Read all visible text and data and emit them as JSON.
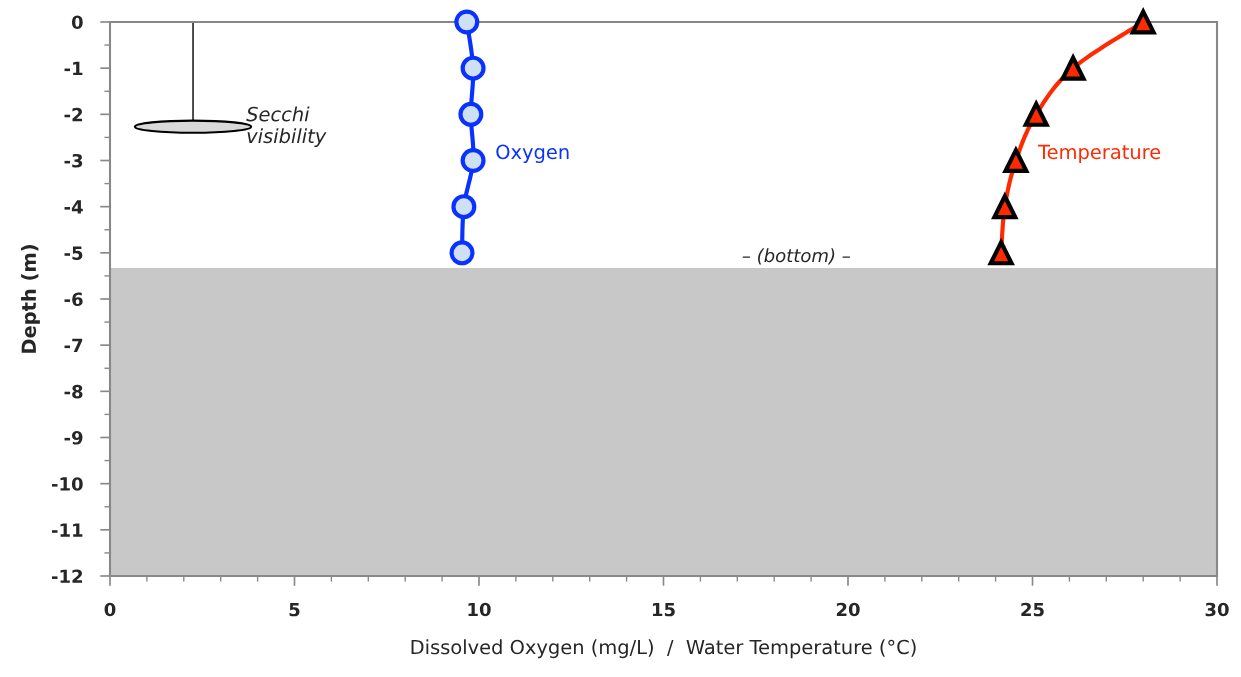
{
  "chart_data": {
    "type": "line",
    "xlabel": "Dissolved Oxygen (mg/L)  /  Water Temperature (°C)",
    "ylabel": "Depth (m)",
    "series": [
      {
        "name": "Oxygen",
        "color": "#0a32ff",
        "marker": "circle",
        "x": [
          9.67,
          9.84,
          9.78,
          9.84,
          9.59,
          9.54
        ],
        "values": [
          0,
          -1,
          -2,
          -3,
          -4,
          -5
        ]
      },
      {
        "name": "Temperature",
        "color": "#ff2a00",
        "marker": "triangle",
        "x": [
          28.0,
          26.1,
          25.1,
          24.55,
          24.25,
          24.15
        ],
        "values": [
          0,
          -1,
          -2,
          -3,
          -4,
          -5
        ]
      }
    ],
    "xlim": [
      0,
      30
    ],
    "ylim": [
      -12,
      0
    ],
    "xticks": [
      0,
      {
        "value": 1,
        "label": null
      },
      {
        "value": 2,
        "label": null
      },
      {
        "value": 3,
        "label": null
      },
      {
        "value": 4,
        "label": null
      },
      5,
      {
        "value": 6,
        "label": null
      },
      {
        "value": 7,
        "label": null
      },
      {
        "value": 8,
        "label": null
      },
      {
        "value": 9,
        "label": null
      },
      10,
      {
        "value": 11,
        "label": null
      },
      {
        "value": 12,
        "label": null
      },
      {
        "value": 13,
        "label": null
      },
      {
        "value": 14,
        "label": null
      },
      15,
      {
        "value": 16,
        "label": null
      },
      {
        "value": 17,
        "label": null
      },
      {
        "value": 18,
        "label": null
      },
      {
        "value": 19,
        "label": null
      },
      20,
      {
        "value": 21,
        "label": null
      },
      {
        "value": 22,
        "label": null
      },
      {
        "value": 23,
        "label": null
      },
      {
        "value": 24,
        "label": null
      },
      25,
      {
        "value": 26,
        "label": null
      },
      {
        "value": 27,
        "label": null
      },
      {
        "value": 28,
        "label": null
      },
      {
        "value": 29,
        "label": null
      },
      30
    ],
    "yticks": [
      -12,
      {
        "value": -11.5,
        "label": null
      },
      -11,
      {
        "value": -10.5,
        "label": null
      },
      -10,
      {
        "value": -9.5,
        "label": null
      },
      -9,
      {
        "value": -8.5,
        "label": null
      },
      -8,
      {
        "value": -7.5,
        "label": null
      },
      -7,
      {
        "value": -6.5,
        "label": null
      },
      -6,
      {
        "value": -5.5,
        "label": null
      },
      -5,
      {
        "value": -4.5,
        "label": null
      },
      -4,
      {
        "value": -3.5,
        "label": null
      },
      -3,
      {
        "value": -2.5,
        "label": null
      },
      -2,
      {
        "value": -1.5,
        "label": null
      },
      -1,
      {
        "value": -0.5,
        "label": null
      },
      0
    ],
    "bands": [
      {
        "axis": "y",
        "from": -12,
        "to": -5.33,
        "label": "– (bottom) –",
        "color": "#c8c8c8"
      }
    ],
    "annotations": [
      "Secchi\nvisibility"
    ],
    "grid": false,
    "legend": false
  }
}
